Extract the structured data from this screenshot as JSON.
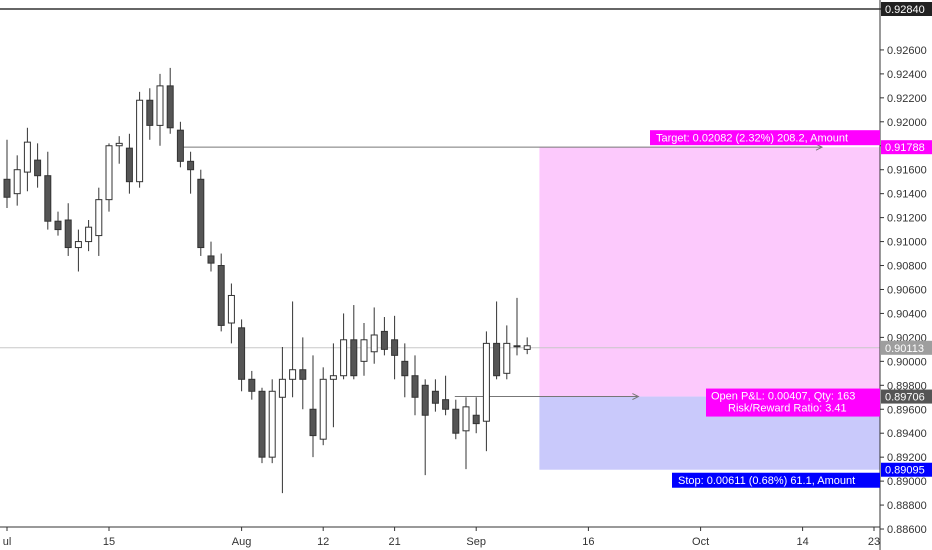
{
  "chart_data": {
    "type": "candlestick",
    "colors": {
      "background": "#ffffff",
      "axis_line": "#333333",
      "up_fill": "#ffffff",
      "down_fill": "#555555",
      "candle_border": "#333333",
      "wick": "#333333",
      "profit_zone": "#fcc9fc",
      "loss_zone": "#c9c9fb",
      "target_tag": "#ff00ff",
      "stop_tag": "#0000ff",
      "price_tag": "#9e9e9e",
      "entry_line": "#777777",
      "current_line": "#c8c8c8"
    },
    "y_axis": {
      "min": 0.885,
      "max": 0.929,
      "ticks": [
        "0.88600",
        "0.88800",
        "0.89000",
        "0.89200",
        "0.89400",
        "0.89600",
        "0.89800",
        "0.90000",
        "0.90200",
        "0.90400",
        "0.90600",
        "0.90800",
        "0.91000",
        "0.91200",
        "0.91400",
        "0.91600",
        "0.91800",
        "0.92000",
        "0.92200",
        "0.92400",
        "0.92600"
      ],
      "top_label": "0.92840"
    },
    "x_axis": {
      "labels": [
        {
          "text": "ul",
          "bar": 0
        },
        {
          "text": "15",
          "bar": 10
        },
        {
          "text": "Aug",
          "bar": 23
        },
        {
          "text": "12",
          "bar": 31
        },
        {
          "text": "21",
          "bar": 38
        },
        {
          "text": "Sep",
          "bar": 46
        },
        {
          "text": "16",
          "bar": 57
        },
        {
          "text": "Oct",
          "bar": 68
        },
        {
          "text": "14",
          "bar": 78
        },
        {
          "text": "23",
          "bar": 85
        }
      ]
    },
    "candles": [
      {
        "o": 0.9152,
        "h": 0.9185,
        "l": 0.9128,
        "c": 0.9137
      },
      {
        "o": 0.914,
        "h": 0.9172,
        "l": 0.913,
        "c": 0.916
      },
      {
        "o": 0.9158,
        "h": 0.9195,
        "l": 0.9142,
        "c": 0.9183
      },
      {
        "o": 0.9168,
        "h": 0.9182,
        "l": 0.9145,
        "c": 0.9155
      },
      {
        "o": 0.9155,
        "h": 0.9175,
        "l": 0.911,
        "c": 0.9117
      },
      {
        "o": 0.9117,
        "h": 0.9125,
        "l": 0.9105,
        "c": 0.911
      },
      {
        "o": 0.9118,
        "h": 0.9132,
        "l": 0.9088,
        "c": 0.9095
      },
      {
        "o": 0.9095,
        "h": 0.911,
        "l": 0.9075,
        "c": 0.91
      },
      {
        "o": 0.91,
        "h": 0.9118,
        "l": 0.9092,
        "c": 0.9112
      },
      {
        "o": 0.9105,
        "h": 0.9145,
        "l": 0.9088,
        "c": 0.9135
      },
      {
        "o": 0.9135,
        "h": 0.9182,
        "l": 0.9125,
        "c": 0.918
      },
      {
        "o": 0.918,
        "h": 0.9188,
        "l": 0.9165,
        "c": 0.9182
      },
      {
        "o": 0.9178,
        "h": 0.919,
        "l": 0.914,
        "c": 0.915
      },
      {
        "o": 0.915,
        "h": 0.9225,
        "l": 0.9145,
        "c": 0.9218
      },
      {
        "o": 0.9218,
        "h": 0.9228,
        "l": 0.9185,
        "c": 0.9197
      },
      {
        "o": 0.9197,
        "h": 0.924,
        "l": 0.918,
        "c": 0.923
      },
      {
        "o": 0.923,
        "h": 0.9245,
        "l": 0.919,
        "c": 0.9195
      },
      {
        "o": 0.9193,
        "h": 0.92,
        "l": 0.9162,
        "c": 0.9167
      },
      {
        "o": 0.9167,
        "h": 0.9175,
        "l": 0.914,
        "c": 0.916
      },
      {
        "o": 0.9152,
        "h": 0.916,
        "l": 0.9088,
        "c": 0.9095
      },
      {
        "o": 0.9088,
        "h": 0.91,
        "l": 0.9075,
        "c": 0.9082
      },
      {
        "o": 0.908,
        "h": 0.909,
        "l": 0.9025,
        "c": 0.903
      },
      {
        "o": 0.9032,
        "h": 0.9065,
        "l": 0.9015,
        "c": 0.9055
      },
      {
        "o": 0.9028,
        "h": 0.9035,
        "l": 0.8975,
        "c": 0.8985
      },
      {
        "o": 0.8985,
        "h": 0.8992,
        "l": 0.8968,
        "c": 0.8975
      },
      {
        "o": 0.8975,
        "h": 0.8978,
        "l": 0.8915,
        "c": 0.892
      },
      {
        "o": 0.892,
        "h": 0.8985,
        "l": 0.8915,
        "c": 0.8975
      },
      {
        "o": 0.897,
        "h": 0.9012,
        "l": 0.889,
        "c": 0.8985
      },
      {
        "o": 0.8985,
        "h": 0.905,
        "l": 0.897,
        "c": 0.8993
      },
      {
        "o": 0.8993,
        "h": 0.902,
        "l": 0.896,
        "c": 0.8985
      },
      {
        "o": 0.896,
        "h": 0.9005,
        "l": 0.892,
        "c": 0.8938
      },
      {
        "o": 0.8935,
        "h": 0.8995,
        "l": 0.893,
        "c": 0.8985
      },
      {
        "o": 0.8985,
        "h": 0.9015,
        "l": 0.8945,
        "c": 0.8988
      },
      {
        "o": 0.8988,
        "h": 0.904,
        "l": 0.8985,
        "c": 0.9018
      },
      {
        "o": 0.9018,
        "h": 0.9047,
        "l": 0.8985,
        "c": 0.8988
      },
      {
        "o": 0.9,
        "h": 0.9032,
        "l": 0.8988,
        "c": 0.9018
      },
      {
        "o": 0.9008,
        "h": 0.9045,
        "l": 0.8998,
        "c": 0.9022
      },
      {
        "o": 0.9025,
        "h": 0.9037,
        "l": 0.9005,
        "c": 0.901
      },
      {
        "o": 0.9018,
        "h": 0.9038,
        "l": 0.8985,
        "c": 0.9005
      },
      {
        "o": 0.9,
        "h": 0.9015,
        "l": 0.897,
        "c": 0.8988
      },
      {
        "o": 0.8988,
        "h": 0.9005,
        "l": 0.8955,
        "c": 0.897
      },
      {
        "o": 0.898,
        "h": 0.8985,
        "l": 0.8905,
        "c": 0.8955
      },
      {
        "o": 0.8975,
        "h": 0.8985,
        "l": 0.8958,
        "c": 0.8965
      },
      {
        "o": 0.8968,
        "h": 0.8988,
        "l": 0.8955,
        "c": 0.896
      },
      {
        "o": 0.896,
        "h": 0.8968,
        "l": 0.8935,
        "c": 0.894
      },
      {
        "o": 0.8942,
        "h": 0.897,
        "l": 0.891,
        "c": 0.8962
      },
      {
        "o": 0.8955,
        "h": 0.897,
        "l": 0.894,
        "c": 0.8948
      },
      {
        "o": 0.895,
        "h": 0.9025,
        "l": 0.8925,
        "c": 0.9015
      },
      {
        "o": 0.9015,
        "h": 0.905,
        "l": 0.8985,
        "c": 0.8988
      },
      {
        "o": 0.899,
        "h": 0.903,
        "l": 0.8985,
        "c": 0.9015
      },
      {
        "o": 0.9013,
        "h": 0.9053,
        "l": 0.9005,
        "c": 0.9013
      },
      {
        "o": 0.901,
        "h": 0.902,
        "l": 0.9006,
        "c": 0.9013
      }
    ],
    "position": {
      "side": "long",
      "entry": 0.89706,
      "target": 0.91788,
      "stop": 0.89095,
      "current": 0.90113,
      "start_bar": 52,
      "end_bar": 86,
      "line_from_bar": 18,
      "line_to_bar": 80
    },
    "labels": {
      "target": "Target: 0.02082 (2.32%) 208.2, Amount",
      "stop": "Stop: 0.00611 (0.68%) 61.1, Amount",
      "pnl_line1": "Open P&L: 0.00407, Qty: 163",
      "pnl_line2": "Risk/Reward Ratio: 3.41",
      "price_target": "0.91788",
      "price_entry": "0.89706",
      "price_stop": "0.89095",
      "price_current": "0.90113"
    }
  }
}
